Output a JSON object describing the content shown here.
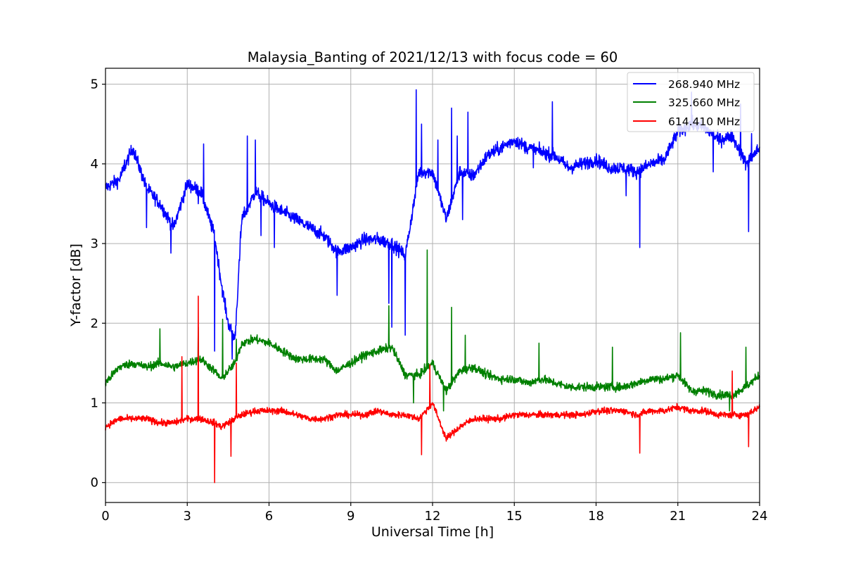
{
  "chart_data": {
    "type": "line",
    "title": "Malaysia_Banting of 2021/12/13 with focus code = 60",
    "xlabel": "Universal Time [h]",
    "ylabel": "Y-factor [dB]",
    "xlim": [
      0,
      24
    ],
    "ylim": [
      -0.25,
      5.2
    ],
    "xticks": [
      "0",
      "3",
      "6",
      "9",
      "12",
      "15",
      "18",
      "21",
      "24"
    ],
    "yticks": [
      "0",
      "1",
      "2",
      "3",
      "4",
      "5"
    ],
    "grid": true,
    "legend_position": "top-right",
    "x": [
      0,
      0.5,
      1.0,
      1.5,
      2.0,
      2.5,
      3.0,
      3.5,
      4.0,
      4.25,
      4.5,
      4.75,
      5.0,
      5.5,
      6.0,
      6.5,
      7.0,
      7.5,
      8.0,
      8.5,
      9.0,
      9.5,
      10.0,
      10.5,
      11.0,
      11.5,
      12.0,
      12.5,
      13.0,
      13.5,
      14.0,
      14.5,
      15.0,
      15.5,
      16.0,
      16.5,
      17.0,
      17.5,
      18.0,
      18.5,
      19.0,
      19.5,
      20.0,
      20.5,
      21.0,
      21.5,
      22.0,
      22.5,
      23.0,
      23.5,
      24.0
    ],
    "series": [
      {
        "name": "268.940 MHz",
        "color": "#0000ff",
        "values": [
          3.7,
          3.8,
          4.2,
          3.7,
          3.5,
          3.2,
          3.75,
          3.65,
          3.1,
          2.5,
          2.0,
          1.8,
          3.3,
          3.65,
          3.5,
          3.4,
          3.3,
          3.2,
          3.1,
          2.9,
          2.95,
          3.05,
          3.05,
          3.0,
          2.85,
          3.9,
          3.9,
          3.3,
          3.9,
          3.85,
          4.1,
          4.2,
          4.3,
          4.2,
          4.15,
          4.1,
          3.95,
          4.0,
          4.05,
          3.95,
          3.95,
          3.9,
          4.0,
          4.05,
          4.4,
          4.5,
          4.45,
          4.3,
          4.35,
          4.0,
          4.2
        ],
        "noise": 0.14,
        "spikes": [
          [
            0.7,
            4.05
          ],
          [
            1.5,
            3.2
          ],
          [
            2.4,
            2.88
          ],
          [
            3.4,
            3.5
          ],
          [
            3.6,
            4.25
          ],
          [
            4.0,
            1.65
          ],
          [
            4.65,
            1.55
          ],
          [
            4.95,
            3.15
          ],
          [
            5.2,
            4.35
          ],
          [
            5.5,
            4.3
          ],
          [
            5.7,
            3.1
          ],
          [
            6.2,
            2.95
          ],
          [
            8.5,
            2.35
          ],
          [
            10.4,
            2.25
          ],
          [
            10.5,
            1.95
          ],
          [
            11.0,
            1.85
          ],
          [
            11.4,
            4.93
          ],
          [
            11.6,
            4.5
          ],
          [
            12.2,
            4.3
          ],
          [
            12.7,
            4.7
          ],
          [
            12.9,
            4.35
          ],
          [
            13.3,
            4.65
          ],
          [
            13.1,
            3.3
          ],
          [
            15.7,
            3.95
          ],
          [
            16.4,
            4.78
          ],
          [
            19.6,
            2.95
          ],
          [
            19.1,
            3.6
          ],
          [
            21.5,
            4.9
          ],
          [
            22.3,
            3.9
          ],
          [
            23.6,
            3.15
          ],
          [
            23.7,
            4.38
          ],
          [
            23.3,
            4.75
          ]
        ]
      },
      {
        "name": "325.660 MHz",
        "color": "#008000",
        "values": [
          1.25,
          1.45,
          1.5,
          1.45,
          1.5,
          1.45,
          1.5,
          1.55,
          1.4,
          1.3,
          1.4,
          1.5,
          1.75,
          1.8,
          1.75,
          1.65,
          1.55,
          1.55,
          1.55,
          1.4,
          1.5,
          1.6,
          1.65,
          1.7,
          1.35,
          1.35,
          1.5,
          1.15,
          1.4,
          1.45,
          1.35,
          1.3,
          1.3,
          1.25,
          1.3,
          1.25,
          1.2,
          1.2,
          1.2,
          1.2,
          1.2,
          1.25,
          1.3,
          1.3,
          1.35,
          1.15,
          1.15,
          1.1,
          1.1,
          1.2,
          1.35
        ],
        "noise": 0.09,
        "spikes": [
          [
            2.0,
            1.93
          ],
          [
            3.4,
            1.95
          ],
          [
            4.3,
            2.05
          ],
          [
            4.8,
            1.8
          ],
          [
            10.4,
            2.22
          ],
          [
            11.3,
            1.0
          ],
          [
            11.8,
            2.92
          ],
          [
            12.7,
            2.2
          ],
          [
            12.4,
            0.9
          ],
          [
            13.2,
            1.85
          ],
          [
            15.9,
            1.75
          ],
          [
            18.6,
            1.7
          ],
          [
            21.1,
            1.88
          ],
          [
            22.9,
            0.9
          ],
          [
            23.5,
            1.7
          ]
        ]
      },
      {
        "name": "614.410 MHz",
        "color": "#ff0000",
        "values": [
          0.7,
          0.8,
          0.8,
          0.8,
          0.75,
          0.75,
          0.8,
          0.8,
          0.75,
          0.7,
          0.75,
          0.8,
          0.85,
          0.9,
          0.9,
          0.9,
          0.85,
          0.8,
          0.8,
          0.85,
          0.85,
          0.85,
          0.9,
          0.85,
          0.85,
          0.8,
          1.0,
          0.55,
          0.7,
          0.8,
          0.8,
          0.8,
          0.85,
          0.85,
          0.85,
          0.85,
          0.85,
          0.85,
          0.9,
          0.9,
          0.9,
          0.85,
          0.9,
          0.9,
          0.95,
          0.9,
          0.9,
          0.85,
          0.85,
          0.85,
          0.95
        ],
        "noise": 0.07,
        "spikes": [
          [
            2.8,
            1.58
          ],
          [
            3.4,
            2.34
          ],
          [
            4.0,
            0.0
          ],
          [
            4.6,
            0.33
          ],
          [
            4.8,
            1.5
          ],
          [
            11.6,
            0.35
          ],
          [
            11.9,
            1.48
          ],
          [
            19.6,
            0.37
          ],
          [
            23.0,
            1.4
          ],
          [
            23.6,
            0.45
          ]
        ]
      }
    ]
  }
}
